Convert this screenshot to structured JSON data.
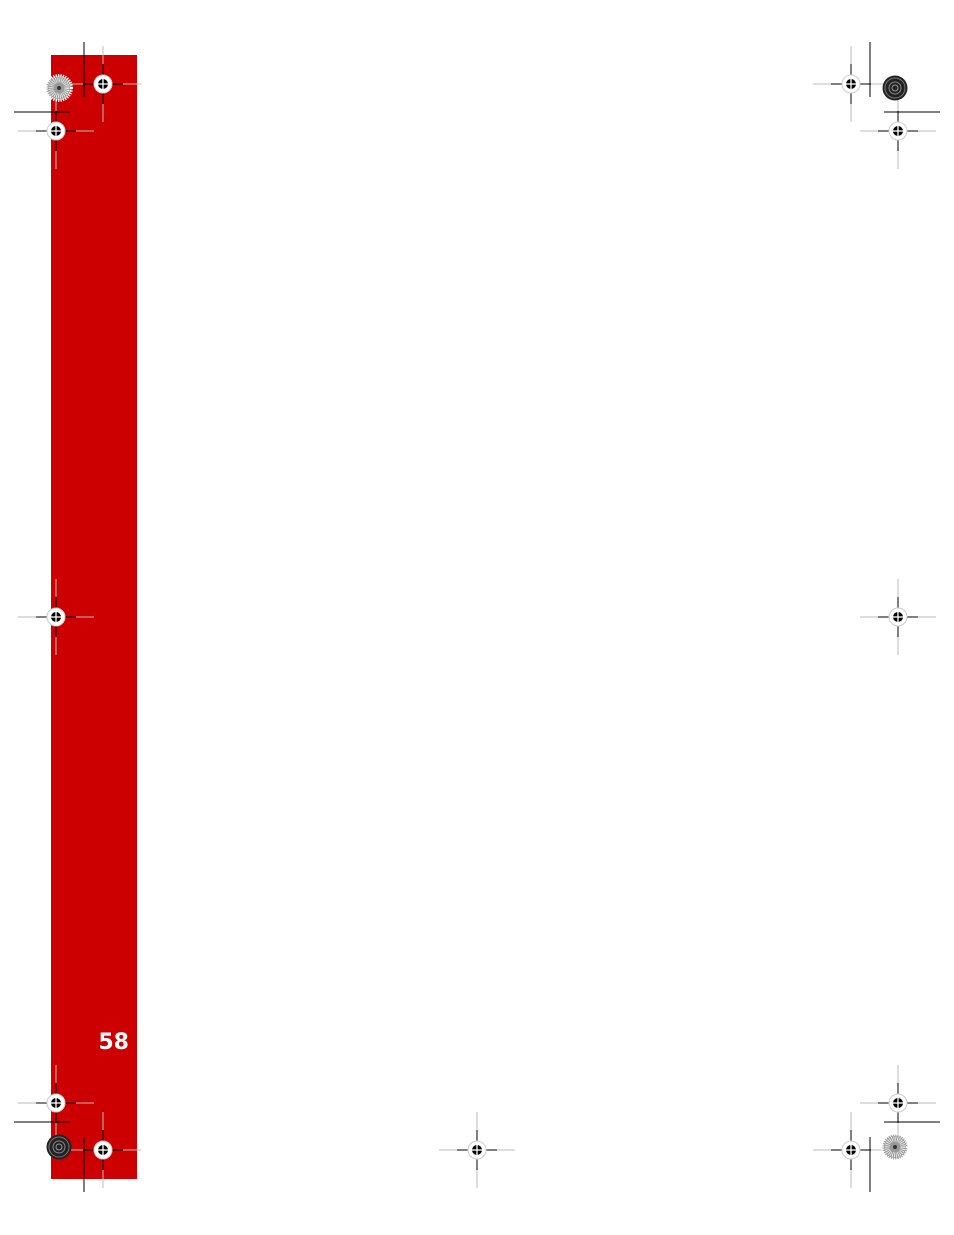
{
  "page": {
    "page_number": "58",
    "band_color": "#cc0000",
    "marks": {
      "registration_icon": "crosshair-target-icon",
      "color_bar_icon": "starburst-icon"
    }
  }
}
